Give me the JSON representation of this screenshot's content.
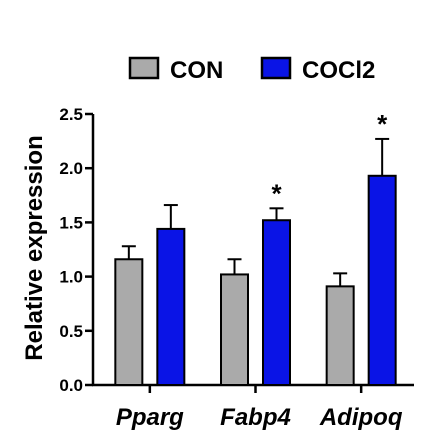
{
  "chart_data": {
    "type": "bar",
    "categories": [
      "Pparg",
      "Fabp4",
      "Adipoq"
    ],
    "series": [
      {
        "name": "CON",
        "color": "#aaaaaa",
        "values": [
          1.16,
          1.02,
          0.91
        ],
        "errors": [
          0.12,
          0.14,
          0.12
        ]
      },
      {
        "name": "COCl2",
        "color": "#0a14e6",
        "values": [
          1.44,
          1.52,
          1.93
        ],
        "errors": [
          0.22,
          0.11,
          0.34
        ]
      }
    ],
    "significance": [
      "",
      "*",
      "*"
    ],
    "ylabel": "Relative expression",
    "xlabel": "",
    "ylim": [
      0,
      2.5
    ],
    "yticks": [
      "0.0",
      "0.5",
      "1.0",
      "1.5",
      "2.0",
      "2.5"
    ],
    "legend_position": "top-right",
    "grid": false
  }
}
